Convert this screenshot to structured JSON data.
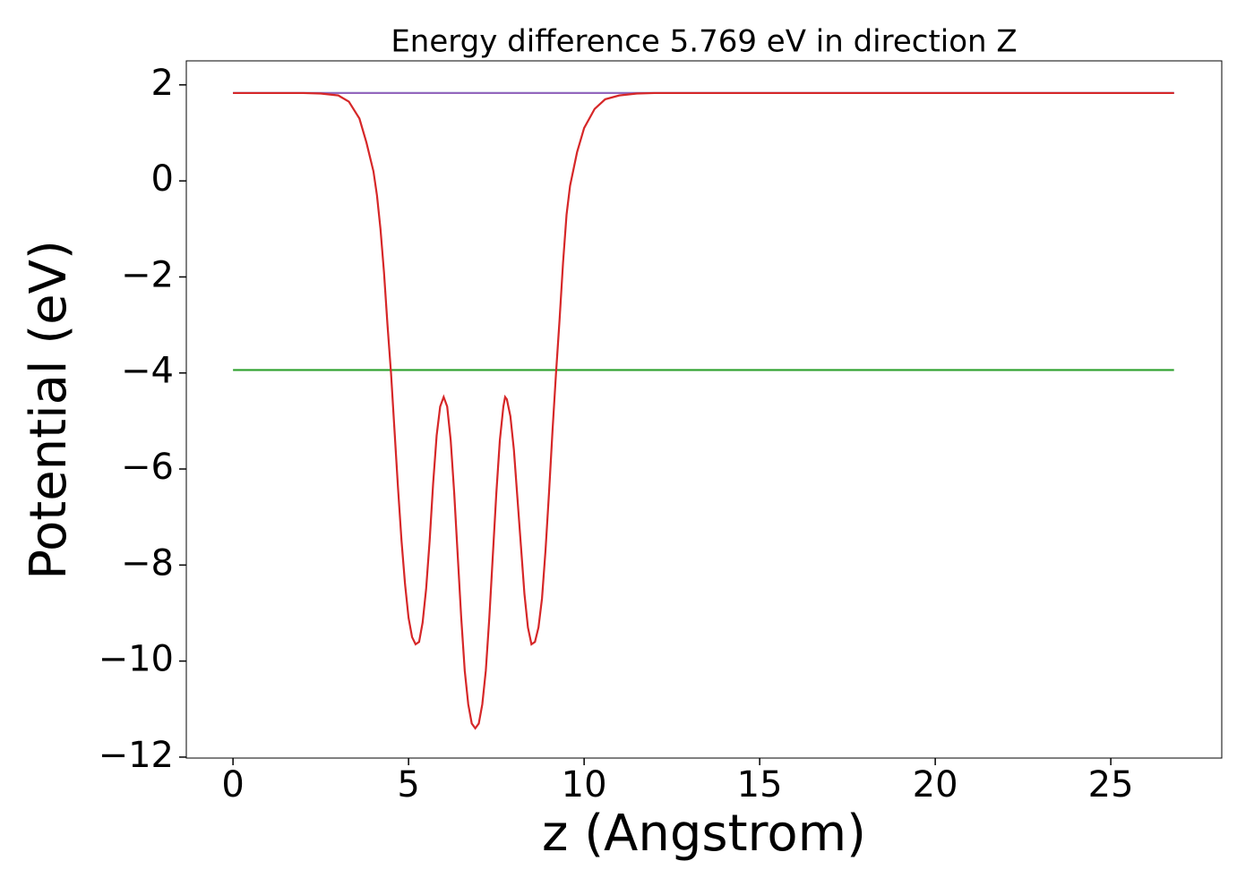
{
  "chart_data": {
    "type": "line",
    "title": "Energy difference 5.769 eV in direction Z",
    "xlabel": "z (Angstrom)",
    "ylabel": "Potential (eV)",
    "xlim": [
      -1.33,
      28.16
    ],
    "ylim": [
      -12.02,
      2.5
    ],
    "xticks": [
      0,
      5,
      10,
      15,
      20,
      25
    ],
    "yticks": [
      2,
      0,
      {
        "value": -2,
        "label": "−2"
      },
      {
        "value": -4,
        "label": "−4"
      },
      {
        "value": -6,
        "label": "−6"
      },
      {
        "value": -8,
        "label": "−8"
      },
      {
        "value": -10,
        "label": "−10"
      },
      {
        "value": -12,
        "label": "−12"
      }
    ],
    "series": [
      {
        "color": "#1f77b4",
        "x": [
          0,
          26.8
        ],
        "values": [
          1.83,
          1.83
        ]
      },
      {
        "color": "#2ca02c",
        "x": [
          0,
          26.8
        ],
        "values": [
          -3.939,
          -3.939
        ]
      },
      {
        "color": "#9467bd",
        "x": [
          0,
          26.8
        ],
        "values": [
          1.83,
          1.83
        ]
      },
      {
        "color": "#d62728",
        "x": [
          0,
          2.0,
          2.5,
          3.0,
          3.3,
          3.6,
          3.8,
          4.0,
          4.1,
          4.2,
          4.3,
          4.4,
          4.5,
          4.6,
          4.7,
          4.8,
          4.9,
          5.0,
          5.1,
          5.2,
          5.3,
          5.4,
          5.5,
          5.6,
          5.7,
          5.8,
          5.9,
          6.0,
          6.1,
          6.2,
          6.3,
          6.4,
          6.5,
          6.6,
          6.7,
          6.8,
          6.9,
          7.0,
          7.1,
          7.2,
          7.3,
          7.4,
          7.5,
          7.6,
          7.7,
          7.75,
          7.8,
          7.9,
          8.0,
          8.1,
          8.2,
          8.3,
          8.4,
          8.5,
          8.6,
          8.7,
          8.8,
          8.9,
          9.0,
          9.1,
          9.2,
          9.3,
          9.4,
          9.5,
          9.6,
          9.8,
          10.0,
          10.3,
          10.6,
          11.0,
          11.5,
          12.0,
          26.8
        ],
        "values": [
          1.83,
          1.83,
          1.82,
          1.78,
          1.65,
          1.3,
          0.8,
          0.2,
          -0.3,
          -1.0,
          -1.9,
          -3.0,
          -4.0,
          -5.2,
          -6.4,
          -7.5,
          -8.4,
          -9.1,
          -9.5,
          -9.65,
          -9.6,
          -9.2,
          -8.5,
          -7.5,
          -6.3,
          -5.3,
          -4.7,
          -4.5,
          -4.7,
          -5.4,
          -6.5,
          -7.8,
          -9.1,
          -10.2,
          -10.9,
          -11.3,
          -11.4,
          -11.3,
          -10.9,
          -10.2,
          -9.1,
          -7.8,
          -6.5,
          -5.4,
          -4.7,
          -4.5,
          -4.55,
          -4.9,
          -5.6,
          -6.6,
          -7.6,
          -8.6,
          -9.3,
          -9.65,
          -9.6,
          -9.3,
          -8.7,
          -7.7,
          -6.5,
          -5.2,
          -4.0,
          -2.9,
          -1.7,
          -0.7,
          -0.1,
          0.6,
          1.1,
          1.5,
          1.7,
          1.78,
          1.82,
          1.83,
          1.83
        ]
      }
    ]
  }
}
